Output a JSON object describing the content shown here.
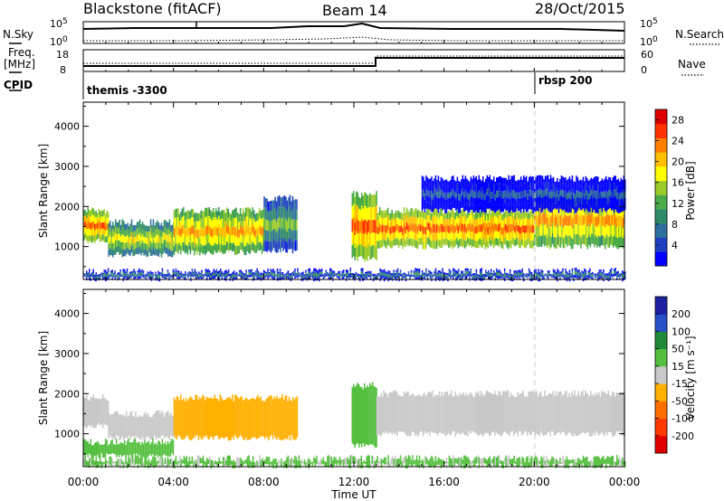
{
  "header": {
    "station": "Blackstone (fitACF)",
    "beam": "Beam 14",
    "date": "28/Oct/2015"
  },
  "summary_panel": {
    "nsky_label": "N.Sky",
    "nsearch_label": "N.Search",
    "noise_ticks": [
      "10^5",
      "10^0"
    ],
    "noise_ticks_right": [
      "10^5",
      "10^0"
    ],
    "freq_label_1": "Freq.",
    "freq_label_2": "[MHz]",
    "freq_ticks": [
      "18",
      "8"
    ],
    "nave_label": "Nave",
    "nave_ticks": [
      "60",
      "0"
    ],
    "cpid_label": "CPID",
    "cpid_segments": [
      {
        "name": "themis -3300",
        "start_hour": 0
      },
      {
        "name": "rbsp 200",
        "start_hour": 20
      }
    ]
  },
  "chart_data": [
    {
      "type": "heatmap",
      "title": "",
      "xlabel": "Time UT",
      "ylabel": "Slant Range [km]",
      "x_ticks": [
        "00:00",
        "04:00",
        "08:00",
        "12:00",
        "16:00",
        "20:00",
        "00:00"
      ],
      "xlim_hours": [
        0,
        24
      ],
      "y_ticks": [
        1000,
        2000,
        3000,
        4000
      ],
      "ylim": [
        180,
        4600
      ],
      "colorbar": {
        "label": "Power [dB]",
        "ticks": [
          4,
          8,
          12,
          16,
          20,
          24,
          28
        ],
        "range": [
          0,
          30
        ],
        "colors": [
          "#0000ff",
          "#1f3fc0",
          "#2e6fa0",
          "#2f8a6a",
          "#4bab48",
          "#9ccb2a",
          "#ffff00",
          "#ffc000",
          "#ff8000",
          "#ff3300",
          "#e00000"
        ]
      },
      "bands": [
        {
          "t0": 0,
          "t1": 1.1,
          "r_lo": 1150,
          "r_hi": 1900,
          "value": 24
        },
        {
          "t0": 1.1,
          "t1": 4,
          "r_lo": 800,
          "r_hi": 1600,
          "value": 18
        },
        {
          "t0": 4,
          "t1": 8,
          "r_lo": 850,
          "r_hi": 1900,
          "value": 22
        },
        {
          "t0": 8,
          "t1": 9.5,
          "r_lo": 900,
          "r_hi": 2200,
          "value": 14
        },
        {
          "t0": 11.9,
          "t1": 13,
          "r_lo": 700,
          "r_hi": 2300,
          "value": 24
        },
        {
          "t0": 13,
          "t1": 20,
          "r_lo": 1000,
          "r_hi": 1900,
          "value": 24
        },
        {
          "t0": 20,
          "t1": 24,
          "r_lo": 1000,
          "r_hi": 2300,
          "value": 22
        },
        {
          "t0": 15,
          "t1": 24,
          "r_lo": 1900,
          "r_hi": 2700,
          "value": 6
        },
        {
          "t0": 0,
          "t1": 24,
          "r_lo": 200,
          "r_hi": 380,
          "value": 10
        }
      ]
    },
    {
      "type": "heatmap",
      "title": "",
      "xlabel": "Time UT",
      "ylabel": "Slant Range [km]",
      "x_ticks": [
        "00:00",
        "04:00",
        "08:00",
        "12:00",
        "16:00",
        "20:00",
        "00:00"
      ],
      "xlim_hours": [
        0,
        24
      ],
      "y_ticks": [
        1000,
        2000,
        3000,
        4000
      ],
      "ylim": [
        180,
        4600
      ],
      "colorbar": {
        "label": "Velocity [m s⁻¹]",
        "ticks": [
          200,
          100,
          50,
          15,
          -15,
          -50,
          -100,
          -200
        ],
        "colors": [
          "#1e1ea0",
          "#2850c8",
          "#1f8a3a",
          "#55c040",
          "#c8c8c8",
          "#ffb000",
          "#ff7000",
          "#ff3a00",
          "#e00000"
        ]
      },
      "bands": [
        {
          "t0": 0,
          "t1": 1.1,
          "r_lo": 1200,
          "r_hi": 1900,
          "value": 0
        },
        {
          "t0": 1.1,
          "t1": 4,
          "r_lo": 900,
          "r_hi": 1500,
          "value": 0
        },
        {
          "t0": 4,
          "t1": 9.5,
          "r_lo": 900,
          "r_hi": 1900,
          "value": -40
        },
        {
          "t0": 11.9,
          "t1": 13,
          "r_lo": 700,
          "r_hi": 2200,
          "value": 30
        },
        {
          "t0": 13,
          "t1": 24,
          "r_lo": 1000,
          "r_hi": 2000,
          "value": 0
        },
        {
          "t0": 0,
          "t1": 4,
          "r_lo": 450,
          "r_hi": 800,
          "value": 30
        },
        {
          "t0": 0,
          "t1": 24,
          "r_lo": 200,
          "r_hi": 380,
          "value": 20
        }
      ]
    }
  ]
}
